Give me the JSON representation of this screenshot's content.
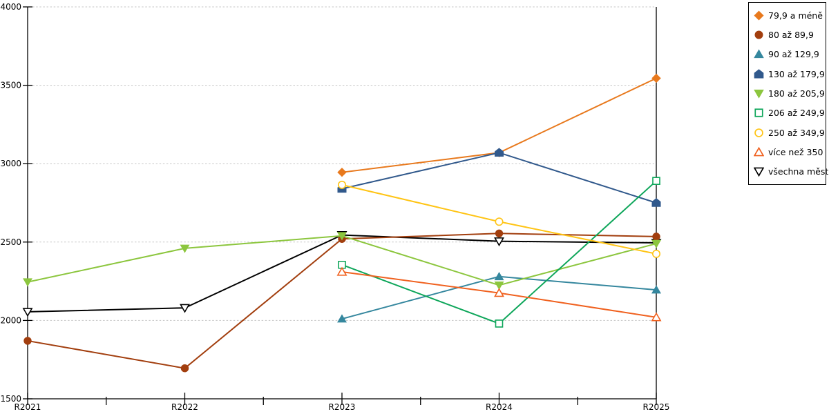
{
  "chart_data": {
    "type": "line",
    "title": "",
    "xlabel": "",
    "ylabel": "",
    "categories": [
      "R2021",
      "R2022",
      "R2023",
      "R2024",
      "R2025"
    ],
    "ylim": [
      1500,
      4000
    ],
    "yticks": [
      1500,
      2000,
      2500,
      3000,
      3500,
      4000
    ],
    "grid": "horizontal-dotted",
    "grid_color": "#c6c6c6",
    "axis_color": "#000000",
    "legend_position": "top-right",
    "series": [
      {
        "name": "79,9 a méně",
        "marker": "diamond",
        "fill": "filled",
        "color": "#E8791D",
        "values": [
          null,
          null,
          2945,
          3070,
          3545
        ]
      },
      {
        "name": "80 až 89,9",
        "marker": "circle",
        "fill": "filled",
        "color": "#A23E0E",
        "values": [
          1870,
          1695,
          2520,
          2555,
          2535
        ]
      },
      {
        "name": "90 až 129,9",
        "marker": "triangle-up",
        "fill": "filled",
        "color": "#35879E",
        "values": [
          null,
          null,
          2010,
          2280,
          2195
        ]
      },
      {
        "name": "130 až 179,9",
        "marker": "pentagon",
        "fill": "filled",
        "color": "#31598C",
        "values": [
          null,
          null,
          2840,
          3070,
          2750
        ]
      },
      {
        "name": "180 až 205,9",
        "marker": "triangle-down",
        "fill": "filled",
        "color": "#8CC63E",
        "values": [
          2245,
          2460,
          2540,
          2225,
          2490
        ]
      },
      {
        "name": "206 až 249,9",
        "marker": "square",
        "fill": "open",
        "color": "#0EA65A",
        "values": [
          null,
          null,
          2355,
          1980,
          2890
        ]
      },
      {
        "name": "250 až 349,9",
        "marker": "circle",
        "fill": "open",
        "color": "#FFC414",
        "values": [
          null,
          null,
          2865,
          2630,
          2425
        ]
      },
      {
        "name": "více než 350",
        "marker": "triangle-up",
        "fill": "open",
        "color": "#F0611F",
        "values": [
          null,
          null,
          2310,
          2175,
          2020
        ]
      },
      {
        "name": "všechna města",
        "marker": "triangle-down",
        "fill": "open",
        "color": "#000000",
        "values": [
          2055,
          2080,
          2545,
          2505,
          2495
        ]
      }
    ],
    "draw_order": [
      0,
      2,
      8,
      1,
      3,
      4,
      5,
      6,
      7
    ]
  }
}
